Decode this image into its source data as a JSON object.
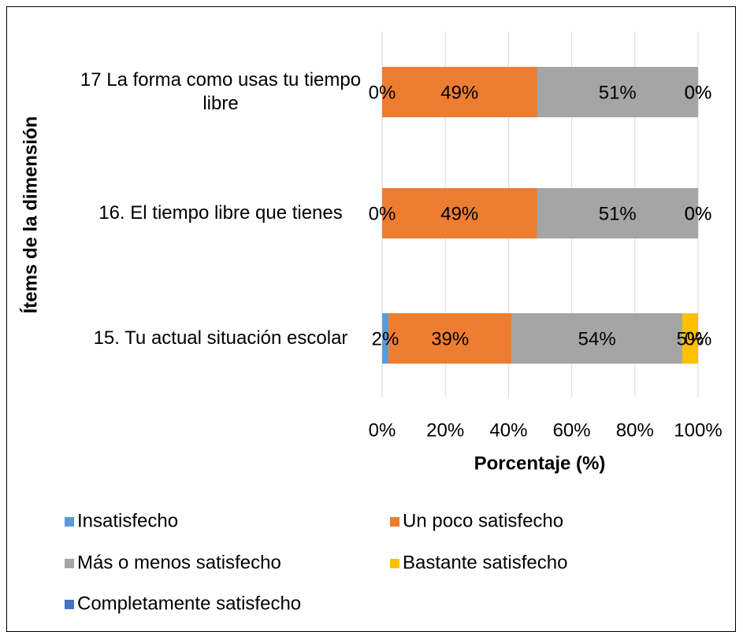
{
  "chart_data": {
    "type": "stacked_barh",
    "xlabel": "Porcentaje (%)",
    "ylabel": "Ítems de la dimensión",
    "categories": [
      "17 La forma como usas tu tiempo libre",
      "16. El tiempo libre que tienes",
      "15. Tu actual situación escolar"
    ],
    "series": [
      {
        "name": "Insatisfecho",
        "color": "#5b9bd5",
        "values": [
          0,
          0,
          2
        ],
        "value_labels": [
          "0%",
          "0%",
          "2%"
        ]
      },
      {
        "name": "Un poco satisfecho",
        "color": "#ed7d31",
        "values": [
          49,
          49,
          39
        ],
        "value_labels": [
          "49%",
          "49%",
          "39%"
        ]
      },
      {
        "name": "Más o menos satisfecho",
        "color": "#a5a5a5",
        "values": [
          51,
          51,
          54
        ],
        "value_labels": [
          "51%",
          "51%",
          "54%"
        ]
      },
      {
        "name": "Bastante satisfecho",
        "color": "#ffc000",
        "values": [
          0,
          0,
          5
        ],
        "value_labels": [
          "0%",
          "0%",
          "5%"
        ]
      },
      {
        "name": "Completamente satisfecho",
        "color": "#4472c4",
        "values": [
          0,
          0,
          0
        ],
        "value_labels": [
          "0%",
          "0%",
          "0%"
        ]
      }
    ],
    "xlim": [
      0,
      100
    ],
    "xticks": [
      {
        "value": 0,
        "label": "0%"
      },
      {
        "value": 20,
        "label": "20%"
      },
      {
        "value": 40,
        "label": "40%"
      },
      {
        "value": 60,
        "label": "60%"
      },
      {
        "value": 80,
        "label": "80%"
      },
      {
        "value": 100,
        "label": "100%"
      }
    ],
    "grid": true,
    "legend": "bottom"
  }
}
